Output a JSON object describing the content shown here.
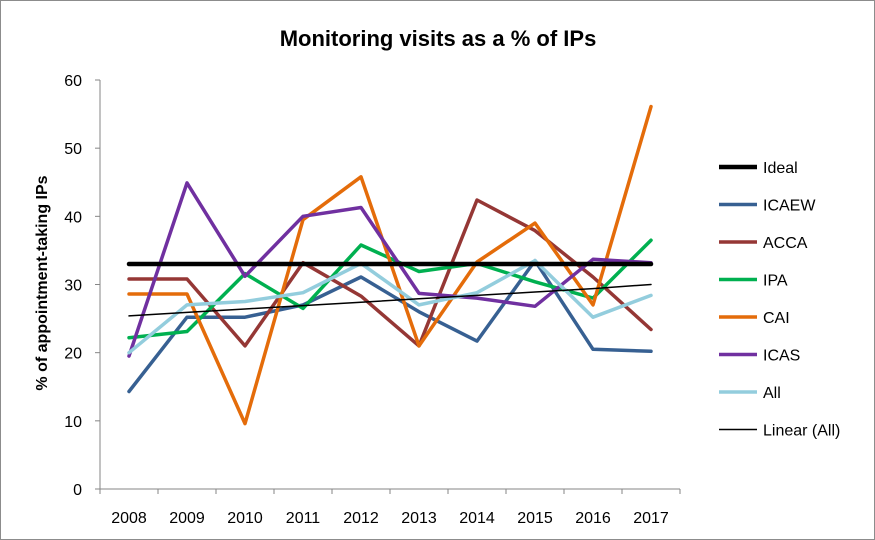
{
  "chart_data": {
    "type": "line",
    "title": "Monitoring visits as a % of IPs",
    "xlabel": "",
    "ylabel": "% of appointment-taking IPs",
    "ylim": [
      0,
      60
    ],
    "yticks": [
      0,
      10,
      20,
      30,
      40,
      50,
      60
    ],
    "grid": false,
    "legend_position": "right",
    "x": [
      "2008",
      "2009",
      "2010",
      "2011",
      "2012",
      "2013",
      "2014",
      "2015",
      "2016",
      "2017"
    ],
    "series": [
      {
        "name": "Ideal",
        "color": "#000000",
        "style": "thick",
        "values": [
          33,
          33,
          33,
          33,
          33,
          33,
          33,
          33,
          33,
          33
        ]
      },
      {
        "name": "ICAEW",
        "color": "#376092",
        "values": [
          14.3,
          25.2,
          25.2,
          27.0,
          31.1,
          26.0,
          21.7,
          33.5,
          20.5,
          20.2
        ]
      },
      {
        "name": "ACCA",
        "color": "#953735",
        "values": [
          30.8,
          30.8,
          21.0,
          33.2,
          28.3,
          21.0,
          42.4,
          37.9,
          31.1,
          23.4
        ]
      },
      {
        "name": "IPA",
        "color": "#00B050",
        "values": [
          22.2,
          23.1,
          31.6,
          26.5,
          35.8,
          31.9,
          33.1,
          30.4,
          28.0,
          36.5
        ]
      },
      {
        "name": "CAI",
        "color": "#E46C0A",
        "values": [
          28.6,
          28.6,
          9.6,
          39.5,
          45.8,
          21.0,
          33.3,
          39.0,
          27.0,
          56.1
        ]
      },
      {
        "name": "ICAS",
        "color": "#7030A0",
        "values": [
          19.5,
          44.9,
          31.2,
          40.0,
          41.3,
          28.7,
          28.0,
          26.8,
          33.7,
          33.2
        ]
      },
      {
        "name": "All",
        "color": "#93CDDD",
        "values": [
          20.0,
          27.0,
          27.5,
          28.8,
          33.1,
          27.0,
          28.8,
          33.5,
          25.2,
          28.4
        ]
      },
      {
        "name": "Linear (All)",
        "color": "#000000",
        "style": "thin",
        "trendline": true,
        "values": [
          25.4,
          25.9,
          26.4,
          26.9,
          27.4,
          27.9,
          28.4,
          28.9,
          29.4,
          30.0
        ]
      }
    ]
  }
}
